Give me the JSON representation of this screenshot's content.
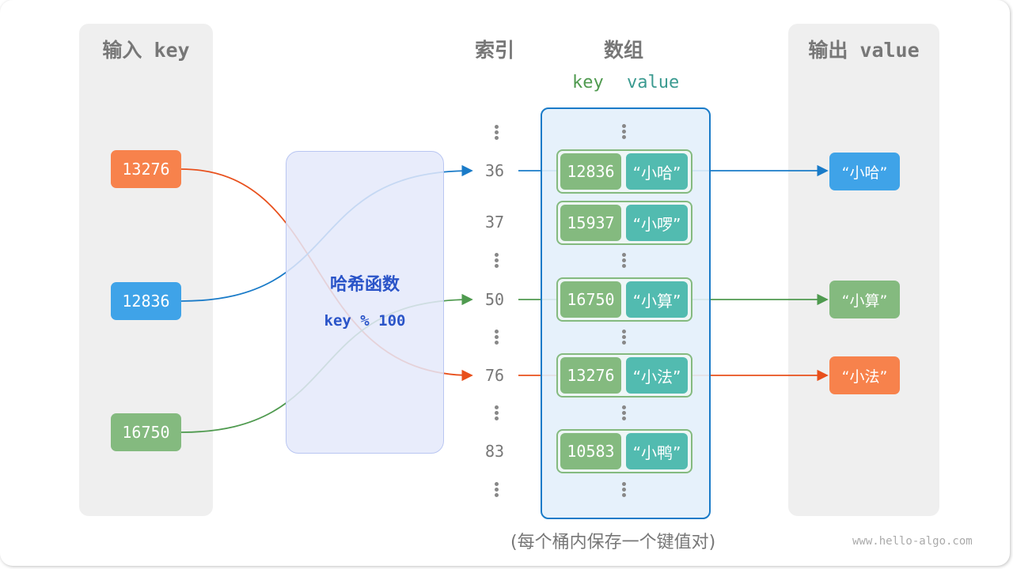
{
  "headers": {
    "input": "输入 key",
    "index": "索引",
    "array": "数组",
    "output": "输出 value",
    "array_key": "key",
    "array_value": "value"
  },
  "inputs": [
    {
      "key": "13276",
      "color": "#f7824c"
    },
    {
      "key": "12836",
      "color": "#3fa3e8"
    },
    {
      "key": "16750",
      "color": "#84ba7f"
    }
  ],
  "hash": {
    "title": "哈希函数",
    "formula": "key % 100"
  },
  "buckets": [
    {
      "index": "36",
      "key": "12836",
      "value": "“小哈”"
    },
    {
      "index": "37",
      "key": "15937",
      "value": "“小啰”"
    },
    {
      "index": "50",
      "key": "16750",
      "value": "“小算”"
    },
    {
      "index": "76",
      "key": "13276",
      "value": "“小法”"
    },
    {
      "index": "83",
      "key": "10583",
      "value": "“小鸭”"
    }
  ],
  "outputs": [
    {
      "value": "“小哈”",
      "color": "#3fa3e8"
    },
    {
      "value": "“小算”",
      "color": "#84ba7f"
    },
    {
      "value": "“小法”",
      "color": "#f7824c"
    }
  ],
  "caption": "(每个桶内保存一个键值对)",
  "watermark": "www.hello-algo.com"
}
